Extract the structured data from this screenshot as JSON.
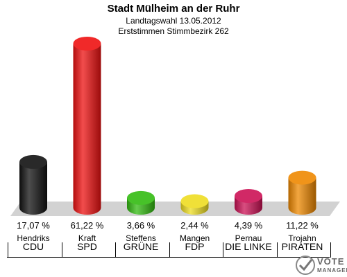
{
  "header": {
    "title": "Stadt Mülheim an der Ruhr",
    "subtitle": "Landtagswahl 13.05.2012",
    "subtitle2": "Erststimmen Stimmbezirk 262"
  },
  "logo": {
    "line1": "VOTE",
    "line2": "MANAGER",
    "icon": "checkmark-seal-icon"
  },
  "chart_data": {
    "type": "bar",
    "title": "Stadt Mülheim an der Ruhr",
    "ylim": [
      0,
      65
    ],
    "grid": false,
    "categories": [
      "CDU",
      "SPD",
      "GRÜNE",
      "FDP",
      "DIE LINKE",
      "PIRATEN"
    ],
    "candidates": [
      "Hendriks",
      "Kraft",
      "Steffens",
      "Mangen",
      "Pernau",
      "Trojahn"
    ],
    "values": [
      17.07,
      61.22,
      3.66,
      2.44,
      4.39,
      11.22
    ],
    "value_labels": [
      "17,07 %",
      "61,22 %",
      "3,66 %",
      "2,44 %",
      "4,39 %",
      "11,22 %"
    ],
    "colors": [
      "#111111",
      "#ee1111",
      "#33bb11",
      "#eedd22",
      "#cc1155",
      "#ee8800"
    ]
  }
}
